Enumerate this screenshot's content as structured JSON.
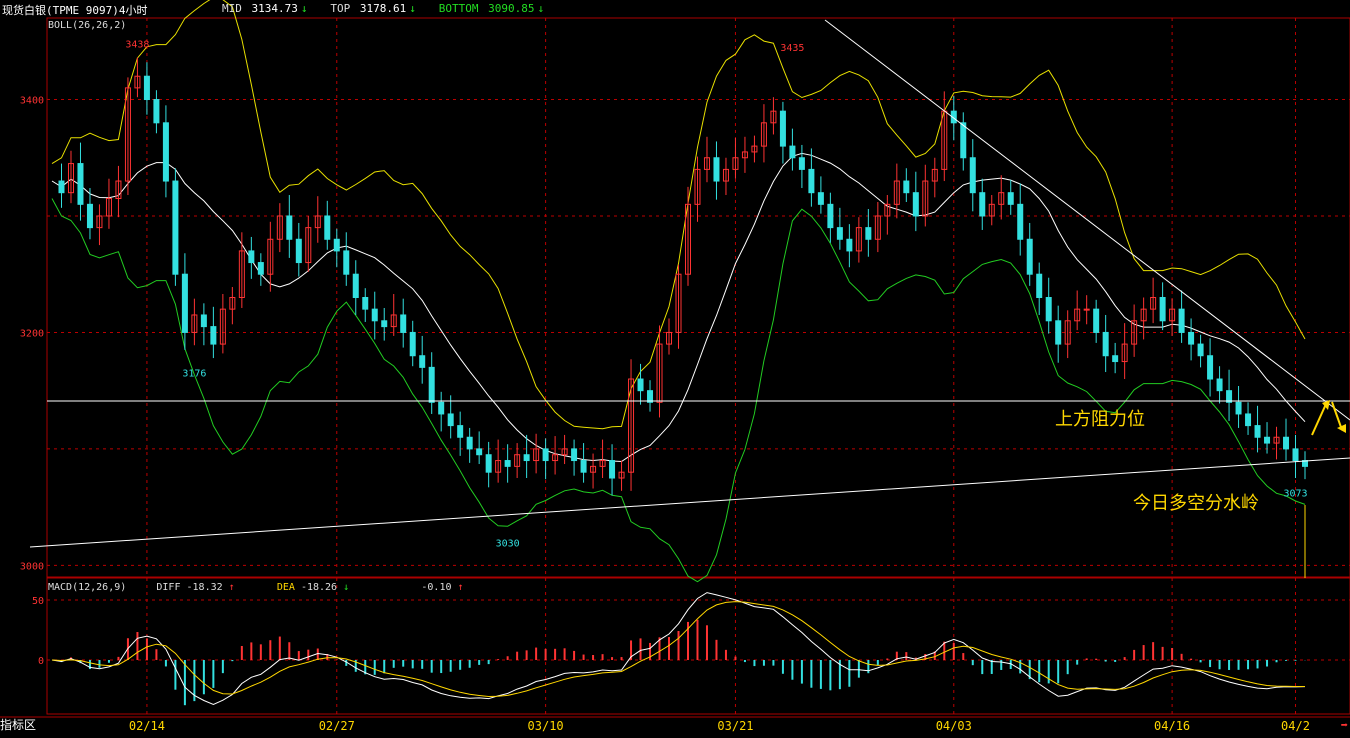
{
  "header": {
    "symbol": "现货白银(TPME 9097)4小时",
    "mid_label": "MID",
    "mid_value": "3134.73",
    "mid_arrow": "↓",
    "top_label": "TOP",
    "top_value": "3178.61",
    "top_arrow": "↓",
    "bottom_label": "BOTTOM",
    "bottom_value": "3090.85",
    "bottom_arrow": "↓"
  },
  "boll_label": "BOLL(26,26,2)",
  "macd": {
    "label": "MACD(12,26,9)",
    "diff_label": "DIFF",
    "diff_value": "-18.32",
    "diff_arrow": "↑",
    "dea_label": "DEA",
    "dea_value": "-18.26",
    "dea_arrow": "↓",
    "macd_value": "-0.10",
    "macd_arrow": "↑"
  },
  "annotations": {
    "resistance": "上方阻力位",
    "watershed": "今日多空分水岭"
  },
  "footer": {
    "tab_label": "指标区"
  },
  "colors": {
    "up": "#ff3333",
    "down": "#33e0e0",
    "upper": "#e8e000",
    "mid": "#ffffff",
    "lower": "#22cc22",
    "grid": "#bb0000"
  },
  "chart_data": {
    "type": "line",
    "y_ticks": [
      3000,
      3200,
      3400
    ],
    "ylim": [
      2990,
      3470
    ],
    "x_ticks": [
      "02/14",
      "02/27",
      "03/10",
      "03/21",
      "04/03",
      "04/16",
      "04/2"
    ],
    "price_labels": [
      {
        "text": "3438",
        "value": 3438
      },
      {
        "text": "3176",
        "value": 3176
      },
      {
        "text": "3030",
        "value": 3030
      },
      {
        "text": "3435",
        "value": 3435
      },
      {
        "text": "3073",
        "value": 3073
      }
    ],
    "macd_ticks": [
      50,
      0
    ],
    "macd_ylim": [
      -45,
      60
    ],
    "close_path": [
      3330,
      3320,
      3345,
      3310,
      3290,
      3300,
      3315,
      3330,
      3410,
      3420,
      3400,
      3380,
      3330,
      3250,
      3200,
      3215,
      3205,
      3190,
      3220,
      3230,
      3270,
      3260,
      3250,
      3280,
      3300,
      3280,
      3260,
      3290,
      3300,
      3280,
      3270,
      3250,
      3230,
      3220,
      3210,
      3205,
      3215,
      3200,
      3180,
      3170,
      3140,
      3130,
      3120,
      3110,
      3100,
      3095,
      3080,
      3090,
      3085,
      3095,
      3090,
      3100,
      3090,
      3095,
      3100,
      3090,
      3080,
      3085,
      3090,
      3075,
      3080,
      3160,
      3150,
      3140,
      3190,
      3200,
      3250,
      3310,
      3340,
      3350,
      3330,
      3340,
      3350,
      3355,
      3360,
      3380,
      3390,
      3360,
      3350,
      3340,
      3320,
      3310,
      3290,
      3280,
      3270,
      3290,
      3280,
      3300,
      3310,
      3330,
      3320,
      3300,
      3330,
      3340,
      3390,
      3380,
      3350,
      3320,
      3300,
      3310,
      3320,
      3310,
      3280,
      3250,
      3230,
      3210,
      3190,
      3210,
      3220,
      3220,
      3200,
      3180,
      3175,
      3190,
      3210,
      3220,
      3230,
      3210,
      3220,
      3200,
      3190,
      3180,
      3160,
      3150,
      3140,
      3130,
      3120,
      3110,
      3105,
      3110,
      3100,
      3090,
      3085
    ]
  }
}
